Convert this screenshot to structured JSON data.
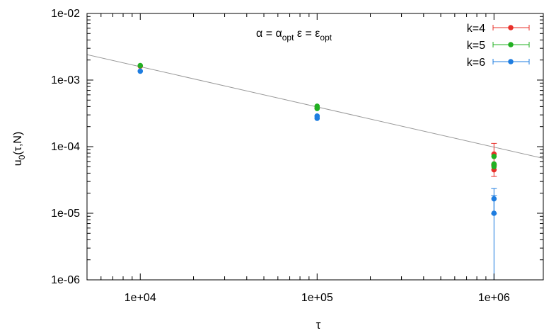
{
  "chart_data": {
    "type": "scatter",
    "title": "",
    "xlabel": "τ",
    "ylabel": "u0(τ,N)",
    "ylabel_parts": {
      "base": "u",
      "sub": "0",
      "rest": "(τ,N)"
    },
    "x_scale": "log",
    "y_scale": "log",
    "xlim": [
      5000,
      1900000
    ],
    "ylim": [
      1e-06,
      0.01
    ],
    "x_ticks": [
      10000,
      100000,
      1000000
    ],
    "x_tick_labels": [
      "1e+04",
      "1e+05",
      "1e+06"
    ],
    "y_ticks": [
      1e-06,
      1e-05,
      0.0001,
      0.001,
      0.01
    ],
    "y_tick_labels": [
      "1e-06",
      "1e-05",
      "1e-04",
      "1e-03",
      "1e-02"
    ],
    "grid": false,
    "legend_position": "top-right",
    "annotation": {
      "text": "α = αopt   ε = εopt",
      "alpha": "α",
      "alpha_sub": "opt",
      "eps": "ε",
      "eps_sub": "opt"
    },
    "fit_line": {
      "color": "#999999",
      "x": [
        5000,
        1900000
      ],
      "y": [
        0.00241,
        6.68e-05
      ]
    },
    "series": [
      {
        "name": "k=4",
        "color": "#e8302a",
        "points": [
          {
            "x": 10000,
            "y": 0.00162
          },
          {
            "x": 100000,
            "y": 0.000378
          },
          {
            "x": 1000000,
            "y": 7.75e-05,
            "err_low": 5.25e-05,
            "err_high": 0.000112
          },
          {
            "x": 1000000,
            "y": 4.5e-05,
            "err_low": 3.57e-05,
            "err_high": 5.4e-05
          }
        ]
      },
      {
        "name": "k=5",
        "color": "#22b022",
        "points": [
          {
            "x": 10000,
            "y": 0.00165
          },
          {
            "x": 100000,
            "y": 0.000405
          },
          {
            "x": 100000,
            "y": 0.000375
          },
          {
            "x": 1000000,
            "y": 7.14e-05
          },
          {
            "x": 1000000,
            "y": 5.5e-05
          },
          {
            "x": 1000000,
            "y": 5.02e-05
          }
        ]
      },
      {
        "name": "k=6",
        "color": "#1e7de0",
        "points": [
          {
            "x": 10000,
            "y": 0.00136
          },
          {
            "x": 100000,
            "y": 0.000288
          },
          {
            "x": 100000,
            "y": 0.000267
          },
          {
            "x": 1000000,
            "y": 1.65e-05,
            "err_low": 9.8e-06,
            "err_high": 2.35e-05
          },
          {
            "x": 1000000,
            "y": 1e-05,
            "err_low": 1e-06,
            "err_high": 1.85e-05
          }
        ]
      }
    ]
  }
}
